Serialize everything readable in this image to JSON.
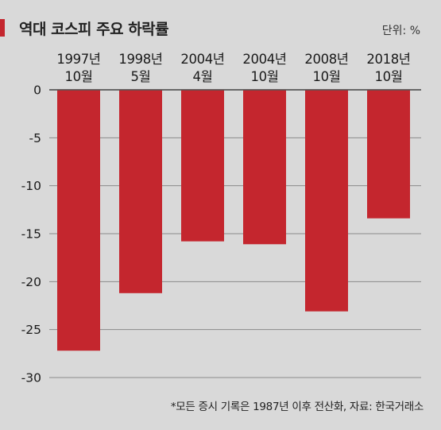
{
  "header": {
    "title": "역대 코스피 주요 하락률",
    "unit": "단위: %"
  },
  "footnote": "*모든 증시 기록은 1987년 이후 전산화, 자료: 한국거래소",
  "colors": {
    "background": "#d9d9d9",
    "bar": "#c4262e",
    "accent": "#c4262e",
    "grid": "#8a8a8a"
  },
  "chart_data": {
    "type": "bar",
    "title": "역대 코스피 주요 하락률",
    "categories": [
      [
        "1997년",
        "10월"
      ],
      [
        "1998년",
        "5월"
      ],
      [
        "2004년",
        "4월"
      ],
      [
        "2004년",
        "10월"
      ],
      [
        "2008년",
        "10월"
      ],
      [
        "2018년",
        "10월"
      ]
    ],
    "values": [
      -27.2,
      -21.2,
      -15.8,
      -16.1,
      -23.1,
      -13.4
    ],
    "ylim": [
      -30,
      0
    ],
    "yticks": [
      0,
      -5,
      -10,
      -15,
      -20,
      -25,
      -30
    ],
    "ytick_labels": [
      "0",
      "-5",
      "-10",
      "-15",
      "-20",
      "-25",
      "-30"
    ],
    "xlabel": "",
    "ylabel": "",
    "unit": "%",
    "grid": true,
    "category_axis_position": "top"
  }
}
